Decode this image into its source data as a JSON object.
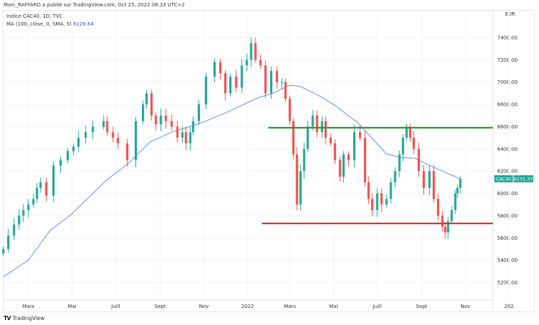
{
  "header": {
    "published": "Marc_RAFFARD a publié sur TradingView.com, Oct 25, 2022 08:33 UTC+2",
    "symbol_line": "Indice CAC40, 1D, TVC",
    "ma_label": "MA (100, close, 0, SMA, 5)",
    "ma_value": "6128.64"
  },
  "footer": {
    "brand": "TradingView",
    "logo_icon": "tradingview-logo-icon"
  },
  "colors": {
    "up": "#26a69a",
    "down": "#ef5350",
    "ma": "#6b8fe6",
    "resistance": "#2e9a2e",
    "support": "#e0303a",
    "grid": "#f0f3fa",
    "badge": "#26a69a"
  },
  "chart_data": {
    "type": "candlestick",
    "symbol": "CAC40",
    "currency": "EUR",
    "last_price": "6131.37",
    "ylim": [
      5120,
      7560
    ],
    "y_ticks": [
      "7400.00",
      "7200.00",
      "7000.00",
      "6800.00",
      "6600.00",
      "6400.00",
      "6200.00",
      "6000.00",
      "5800.00",
      "5600.00",
      "5400.00",
      "5200.00"
    ],
    "x_ticks": [
      {
        "label": "Mars",
        "date": "2021-03-01"
      },
      {
        "label": "Mai",
        "date": "2021-05-01"
      },
      {
        "label": "Juill",
        "date": "2021-07-01"
      },
      {
        "label": "Sept",
        "date": "2021-09-01"
      },
      {
        "label": "Nov",
        "date": "2021-11-01"
      },
      {
        "label": "2022",
        "date": "2022-01-01"
      },
      {
        "label": "Mars",
        "date": "2022-03-01"
      },
      {
        "label": "Mai",
        "date": "2022-05-01"
      },
      {
        "label": "Juill",
        "date": "2022-07-01"
      },
      {
        "label": "Sept",
        "date": "2022-09-01"
      },
      {
        "label": "Nov",
        "date": "2022-11-01"
      },
      {
        "label": "202",
        "date": "2023-01-01"
      }
    ],
    "grid": true,
    "close_series": [
      [
        "2021-01-25",
        5500
      ],
      [
        "2021-02-01",
        5620
      ],
      [
        "2021-02-09",
        5720
      ],
      [
        "2021-02-16",
        5800
      ],
      [
        "2021-02-22",
        5850
      ],
      [
        "2021-03-01",
        5900
      ],
      [
        "2021-03-08",
        5950
      ],
      [
        "2021-03-13",
        6050
      ],
      [
        "2021-03-18",
        6100
      ],
      [
        "2021-03-26",
        5980
      ],
      [
        "2021-04-05",
        6250
      ],
      [
        "2021-04-15",
        6300
      ],
      [
        "2021-04-25",
        6380
      ],
      [
        "2021-05-03",
        6420
      ],
      [
        "2021-05-10",
        6500
      ],
      [
        "2021-05-20",
        6550
      ],
      [
        "2021-05-30",
        6600
      ],
      [
        "2021-06-14",
        6650
      ],
      [
        "2021-06-19",
        6550
      ],
      [
        "2021-06-27",
        6500
      ],
      [
        "2021-07-04",
        6450
      ],
      [
        "2021-07-17",
        6300
      ],
      [
        "2021-07-29",
        6650
      ],
      [
        "2021-08-08",
        6800
      ],
      [
        "2021-08-13",
        6900
      ],
      [
        "2021-08-20",
        6700
      ],
      [
        "2021-08-26",
        6620
      ],
      [
        "2021-09-02",
        6700
      ],
      [
        "2021-09-09",
        6650
      ],
      [
        "2021-09-17",
        6600
      ],
      [
        "2021-09-25",
        6500
      ],
      [
        "2021-10-02",
        6550
      ],
      [
        "2021-10-07",
        6450
      ],
      [
        "2021-10-13",
        6550
      ],
      [
        "2021-10-17",
        6650
      ],
      [
        "2021-10-25",
        6800
      ],
      [
        "2021-11-04",
        7050
      ],
      [
        "2021-11-16",
        7180
      ],
      [
        "2021-11-24",
        7080
      ],
      [
        "2021-12-01",
        6900
      ],
      [
        "2021-12-08",
        7050
      ],
      [
        "2021-12-16",
        6950
      ],
      [
        "2021-12-24",
        7150
      ],
      [
        "2021-12-31",
        7200
      ],
      [
        "2022-01-06",
        7350
      ],
      [
        "2022-01-12",
        7200
      ],
      [
        "2022-01-19",
        7150
      ],
      [
        "2022-01-26",
        6900
      ],
      [
        "2022-02-03",
        7100
      ],
      [
        "2022-02-11",
        7000
      ],
      [
        "2022-02-18",
        7000
      ],
      [
        "2022-02-23",
        6850
      ],
      [
        "2022-03-01",
        6650
      ],
      [
        "2022-03-06",
        6350
      ],
      [
        "2022-03-11",
        5900
      ],
      [
        "2022-03-16",
        6200
      ],
      [
        "2022-03-21",
        6400
      ],
      [
        "2022-03-26",
        6600
      ],
      [
        "2022-04-02",
        6700
      ],
      [
        "2022-04-08",
        6550
      ],
      [
        "2022-04-15",
        6650
      ],
      [
        "2022-04-20",
        6500
      ],
      [
        "2022-04-27",
        6450
      ],
      [
        "2022-05-03",
        6300
      ],
      [
        "2022-05-10",
        6150
      ],
      [
        "2022-05-15",
        6350
      ],
      [
        "2022-05-22",
        6300
      ],
      [
        "2022-05-30",
        6550
      ],
      [
        "2022-06-07",
        6500
      ],
      [
        "2022-06-14",
        6100
      ],
      [
        "2022-06-19",
        5950
      ],
      [
        "2022-06-24",
        5850
      ],
      [
        "2022-07-01",
        6000
      ],
      [
        "2022-07-07",
        5900
      ],
      [
        "2022-07-14",
        5950
      ],
      [
        "2022-07-20",
        6100
      ],
      [
        "2022-07-26",
        6200
      ],
      [
        "2022-08-01",
        6350
      ],
      [
        "2022-08-06",
        6500
      ],
      [
        "2022-08-11",
        6600
      ],
      [
        "2022-08-16",
        6500
      ],
      [
        "2022-08-21",
        6400
      ],
      [
        "2022-08-28",
        6200
      ],
      [
        "2022-09-04",
        6050
      ],
      [
        "2022-09-12",
        6200
      ],
      [
        "2022-09-18",
        5950
      ],
      [
        "2022-09-24",
        5800
      ],
      [
        "2022-09-30",
        5700
      ],
      [
        "2022-10-04",
        5650
      ],
      [
        "2022-10-08",
        5750
      ],
      [
        "2022-10-13",
        5850
      ],
      [
        "2022-10-18",
        6000
      ],
      [
        "2022-10-21",
        6050
      ],
      [
        "2022-10-25",
        6131
      ]
    ],
    "ma_series": [
      [
        "2021-01-25",
        5250
      ],
      [
        "2021-03-01",
        5400
      ],
      [
        "2021-03-31",
        5665
      ],
      [
        "2021-04-30",
        5812
      ],
      [
        "2021-06-19",
        6125
      ],
      [
        "2021-07-19",
        6271
      ],
      [
        "2021-08-18",
        6463
      ],
      [
        "2021-09-17",
        6550
      ],
      [
        "2021-10-17",
        6610
      ],
      [
        "2021-11-06",
        6655
      ],
      [
        "2021-12-06",
        6737
      ],
      [
        "2022-01-15",
        6858
      ],
      [
        "2022-02-04",
        6896
      ],
      [
        "2022-03-01",
        6973
      ],
      [
        "2022-03-16",
        6960
      ],
      [
        "2022-04-15",
        6864
      ],
      [
        "2022-05-05",
        6781
      ],
      [
        "2022-06-04",
        6635
      ],
      [
        "2022-07-14",
        6354
      ],
      [
        "2022-08-03",
        6322
      ],
      [
        "2022-08-23",
        6315
      ],
      [
        "2022-09-12",
        6252
      ],
      [
        "2022-10-02",
        6195
      ],
      [
        "2022-10-25",
        6129
      ]
    ],
    "horizontal_lines": [
      {
        "name": "resistance",
        "price": 6590,
        "from": "2022-01-30"
      },
      {
        "name": "support",
        "price": 5730,
        "from": "2022-01-21"
      }
    ]
  }
}
